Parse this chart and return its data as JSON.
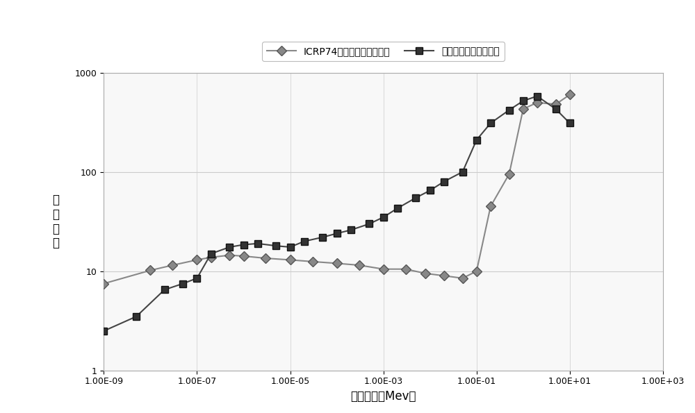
{
  "title": "",
  "xlabel": "中子能量（Mev）",
  "ylabel": "相\n对\n响\n应",
  "legend1": "ICRP74号注量剂量转换系数",
  "legend2": "镏片补偶后的响应曲线",
  "series1_x": [
    1e-09,
    1e-08,
    3e-08,
    1e-07,
    2e-07,
    5e-07,
    1e-06,
    3e-06,
    1e-05,
    3e-05,
    0.0001,
    0.0003,
    0.001,
    0.003,
    0.008,
    0.02,
    0.05,
    0.1,
    0.2,
    0.5,
    1.0,
    2.0,
    5.0,
    10.0
  ],
  "series1_y": [
    7.5,
    10.2,
    11.5,
    13.0,
    13.8,
    14.5,
    14.2,
    13.5,
    13.0,
    12.5,
    12.0,
    11.5,
    10.5,
    10.5,
    9.5,
    9.0,
    8.5,
    10.0,
    45.0,
    95.0,
    430.0,
    500.0,
    480.0,
    600.0
  ],
  "series2_x": [
    1e-09,
    5e-09,
    2e-08,
    5e-08,
    1e-07,
    2e-07,
    5e-07,
    1e-06,
    2e-06,
    5e-06,
    1e-05,
    2e-05,
    5e-05,
    0.0001,
    0.0002,
    0.0005,
    0.001,
    0.002,
    0.005,
    0.01,
    0.02,
    0.05,
    0.1,
    0.2,
    0.5,
    1.0,
    2.0,
    5.0,
    10.0
  ],
  "series2_y": [
    2.5,
    3.5,
    6.5,
    7.5,
    8.5,
    15.0,
    17.5,
    18.5,
    19.0,
    18.0,
    17.5,
    20.0,
    22.0,
    24.0,
    26.0,
    30.0,
    35.0,
    43.0,
    55.0,
    65.0,
    80.0,
    100.0,
    210.0,
    310.0,
    420.0,
    520.0,
    580.0,
    430.0,
    310.0
  ],
  "xtick_positions": [
    1e-09,
    1e-07,
    1e-05,
    0.001,
    0.1,
    10.0,
    1000.0
  ],
  "xtick_labels": [
    "1.00E-09",
    "1.00E-07",
    "1.00E-05",
    "1.00E-03",
    "1.00E-01",
    "1.00E+01",
    "1.00E+03"
  ],
  "ytick_positions": [
    1,
    10,
    100,
    1000
  ],
  "ytick_labels": [
    "1",
    "10",
    "100",
    "1000"
  ],
  "xlim": [
    1e-09,
    1000.0
  ],
  "ylim": [
    1,
    1000
  ],
  "line1_color": "#888888",
  "line2_color": "#444444",
  "marker1_color": "#888888",
  "marker2_color": "#333333",
  "grid_color": "#cccccc",
  "bg_color": "#f8f8f8"
}
